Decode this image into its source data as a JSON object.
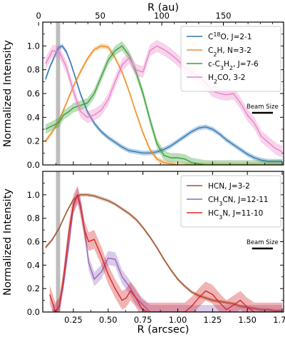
{
  "chart_data": [
    {
      "type": "line",
      "panel": "top",
      "xlabel_top": "R (au)",
      "ylabel": "Normalized Intensity",
      "xlim": [
        0.03,
        1.76
      ],
      "ylim": [
        0.0,
        1.2
      ],
      "top_axis": {
        "unit_scale_au_per_arcsec": 113,
        "ticks": [
          0,
          50,
          100,
          150
        ],
        "tick_labels": [
          "0",
          "50",
          "100",
          "150"
        ]
      },
      "yticks": [
        0.0,
        0.2,
        0.4,
        0.6,
        0.8,
        1.0
      ],
      "ytick_labels": [
        "0.0",
        "0.2",
        "0.4",
        "0.6",
        "0.8",
        "1.0"
      ],
      "beam_label": "Beam Size",
      "beam_width_arcsec": 0.15,
      "shaded_region_x": [
        0.125,
        0.155
      ],
      "legend_position": "upper right",
      "series": [
        {
          "name": "C¹⁸O, J=2-1",
          "color": "#2f77b4",
          "x": [
            0.05,
            0.08,
            0.11,
            0.14,
            0.17,
            0.2,
            0.23,
            0.26,
            0.3,
            0.35,
            0.4,
            0.45,
            0.5,
            0.55,
            0.6,
            0.65,
            0.7,
            0.75,
            0.8,
            0.85,
            0.9,
            0.95,
            1.0,
            1.05,
            1.1,
            1.15,
            1.2,
            1.25,
            1.3,
            1.35,
            1.4,
            1.45,
            1.5,
            1.55,
            1.6,
            1.65,
            1.7,
            1.75
          ],
          "y": [
            0.72,
            0.82,
            0.9,
            0.98,
            1.0,
            0.95,
            0.86,
            0.75,
            0.6,
            0.45,
            0.35,
            0.28,
            0.23,
            0.19,
            0.15,
            0.12,
            0.11,
            0.1,
            0.1,
            0.11,
            0.13,
            0.16,
            0.2,
            0.24,
            0.28,
            0.31,
            0.32,
            0.3,
            0.26,
            0.21,
            0.17,
            0.13,
            0.09,
            0.06,
            0.04,
            0.03,
            0.03,
            0.03
          ],
          "band": 0.02
        },
        {
          "name": "C₂H, N=3-2",
          "color": "#f08c1e",
          "x": [
            0.05,
            0.1,
            0.15,
            0.2,
            0.25,
            0.3,
            0.35,
            0.4,
            0.45,
            0.5,
            0.55,
            0.6,
            0.65,
            0.7,
            0.75,
            0.8,
            0.85,
            0.9,
            0.95,
            1.0,
            1.05,
            1.1,
            1.15,
            1.2,
            1.25,
            1.3,
            1.4,
            1.5,
            1.6,
            1.75
          ],
          "y": [
            0.2,
            0.28,
            0.38,
            0.52,
            0.66,
            0.78,
            0.89,
            0.97,
            1.0,
            0.99,
            0.9,
            0.78,
            0.62,
            0.44,
            0.27,
            0.13,
            0.05,
            0.02,
            0.01,
            0.0,
            0.0,
            0.0,
            0.0,
            0.0,
            0.0,
            0.0,
            0.0,
            0.0,
            0.0,
            0.0
          ],
          "band": 0.02
        },
        {
          "name": "c-C₃H₂, J=7-6",
          "color": "#3aa03a",
          "x": [
            0.05,
            0.1,
            0.15,
            0.18,
            0.22,
            0.25,
            0.3,
            0.35,
            0.4,
            0.45,
            0.5,
            0.55,
            0.6,
            0.65,
            0.7,
            0.75,
            0.8,
            0.85,
            0.9,
            0.95,
            1.0,
            1.05,
            1.1,
            1.15,
            1.2,
            1.3,
            1.4,
            1.5,
            1.6,
            1.75
          ],
          "y": [
            0.3,
            0.33,
            0.36,
            0.42,
            0.45,
            0.48,
            0.5,
            0.52,
            0.6,
            0.74,
            0.88,
            0.96,
            1.0,
            0.92,
            0.78,
            0.6,
            0.38,
            0.18,
            0.08,
            0.06,
            0.06,
            0.05,
            0.02,
            0.01,
            0.0,
            0.0,
            0.0,
            0.0,
            0.0,
            0.0
          ],
          "band": 0.04
        },
        {
          "name": "H₂CO, 3-2",
          "color": "#ea82c8",
          "x": [
            0.05,
            0.1,
            0.15,
            0.2,
            0.25,
            0.3,
            0.35,
            0.4,
            0.45,
            0.5,
            0.55,
            0.6,
            0.65,
            0.7,
            0.75,
            0.8,
            0.85,
            0.9,
            0.95,
            1.0,
            1.05,
            1.1,
            1.15,
            1.2,
            1.25,
            1.3,
            1.35,
            1.4,
            1.45,
            1.5,
            1.55,
            1.6,
            1.65,
            1.7,
            1.75
          ],
          "y": [
            0.85,
            0.96,
            0.95,
            0.82,
            0.62,
            0.45,
            0.4,
            0.42,
            0.46,
            0.55,
            0.7,
            0.84,
            0.9,
            0.8,
            0.78,
            0.96,
            1.0,
            0.97,
            0.93,
            0.88,
            0.82,
            0.78,
            0.74,
            0.69,
            0.62,
            0.6,
            0.59,
            0.6,
            0.52,
            0.42,
            0.35,
            0.24,
            0.19,
            0.14,
            0.11
          ],
          "band": 0.05
        }
      ]
    },
    {
      "type": "line",
      "panel": "bottom",
      "xlabel": "R (arcsec)",
      "ylabel": "Normalized Intensity",
      "xlim": [
        0.03,
        1.76
      ],
      "ylim": [
        0.0,
        1.2
      ],
      "xticks": [
        0.25,
        0.5,
        0.75,
        1.0,
        1.25,
        1.5,
        1.75
      ],
      "xtick_labels": [
        "0.25",
        "0.50",
        "0.75",
        "1.00",
        "1.25",
        "1.50",
        "1.75"
      ],
      "yticks": [
        0.0,
        0.2,
        0.4,
        0.6,
        0.8,
        1.0
      ],
      "ytick_labels": [
        "0.0",
        "0.2",
        "0.4",
        "0.6",
        "0.8",
        "1.0"
      ],
      "beam_label": "Beam Size",
      "beam_width_arcsec": 0.15,
      "shaded_region_x": [
        0.125,
        0.155
      ],
      "legend_position": "upper right",
      "series": [
        {
          "name": "HCN, J=3-2",
          "color": "#a0522d",
          "x": [
            0.05,
            0.1,
            0.15,
            0.2,
            0.25,
            0.3,
            0.35,
            0.4,
            0.45,
            0.5,
            0.55,
            0.6,
            0.65,
            0.7,
            0.75,
            0.8,
            0.85,
            0.9,
            0.95,
            1.0,
            1.05,
            1.1,
            1.15,
            1.2,
            1.25,
            1.3,
            1.35,
            1.4,
            1.45,
            1.5,
            1.55,
            1.6,
            1.65,
            1.7,
            1.75
          ],
          "y": [
            0.55,
            0.62,
            0.72,
            0.85,
            0.96,
            1.0,
            1.0,
            0.99,
            0.97,
            0.95,
            0.92,
            0.88,
            0.84,
            0.79,
            0.72,
            0.64,
            0.55,
            0.45,
            0.36,
            0.28,
            0.22,
            0.17,
            0.14,
            0.12,
            0.1,
            0.09,
            0.08,
            0.07,
            0.05,
            0.04,
            0.03,
            0.02,
            0.02,
            0.01,
            0.01
          ],
          "band": 0.015
        },
        {
          "name": "CH₃CN, J=12-11",
          "color": "#9467bd",
          "x": [
            0.1,
            0.12,
            0.15,
            0.18,
            0.22,
            0.25,
            0.28,
            0.3,
            0.33,
            0.36,
            0.4,
            0.45,
            0.5,
            0.55,
            0.6,
            0.65,
            0.7,
            0.75,
            0.8,
            0.9,
            1.0,
            1.1,
            1.2,
            1.3,
            1.4,
            1.5,
            1.6,
            1.75
          ],
          "y": [
            0.02,
            0.0,
            0.06,
            0.25,
            0.6,
            0.9,
            1.0,
            0.92,
            0.7,
            0.42,
            0.28,
            0.34,
            0.46,
            0.45,
            0.3,
            0.22,
            0.12,
            0.06,
            0.0,
            0.0,
            0.0,
            0.0,
            0.0,
            0.0,
            0.0,
            0.0,
            0.0,
            0.0
          ],
          "band": 0.06
        },
        {
          "name": "HC₃N, J=11-10",
          "color": "#d62728",
          "x": [
            0.08,
            0.1,
            0.12,
            0.15,
            0.18,
            0.22,
            0.25,
            0.28,
            0.3,
            0.33,
            0.36,
            0.4,
            0.45,
            0.5,
            0.55,
            0.6,
            0.63,
            0.66,
            0.7,
            0.74,
            0.78,
            0.82,
            0.86,
            0.9,
            0.95,
            1.0,
            1.05,
            1.1,
            1.15,
            1.2,
            1.25,
            1.3,
            1.35,
            1.4,
            1.45,
            1.5,
            1.55,
            1.6,
            1.75
          ],
          "y": [
            0.15,
            0.08,
            0.0,
            0.05,
            0.3,
            0.7,
            0.92,
            1.0,
            0.9,
            0.7,
            0.6,
            0.62,
            0.48,
            0.32,
            0.2,
            0.1,
            0.12,
            0.18,
            0.12,
            0.03,
            0.0,
            0.0,
            0.0,
            0.0,
            0.0,
            0.0,
            0.0,
            0.05,
            0.12,
            0.18,
            0.15,
            0.08,
            0.02,
            0.06,
            0.1,
            0.04,
            0.0,
            0.0,
            0.0
          ],
          "band": 0.08
        }
      ]
    }
  ]
}
